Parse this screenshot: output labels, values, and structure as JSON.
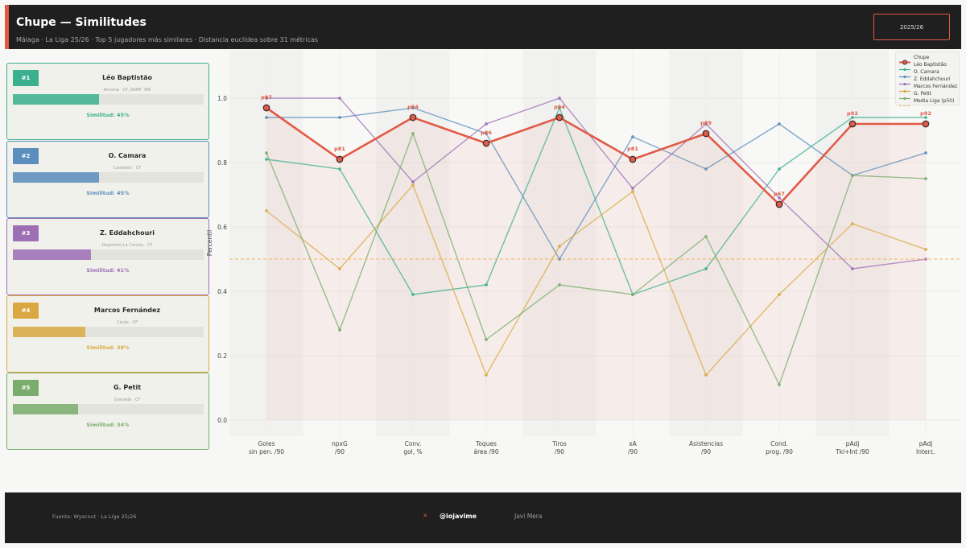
{
  "header": {
    "title": "Chupe — Similitudes",
    "subtitle": "Málaga  ·  La Liga 25/26  ·  Top 5 jugadores más similares  ·  Distancia euclídea sobre 31 métricas",
    "season": "2025/26"
  },
  "cards": [
    {
      "rank": "#1",
      "name": "Léo Baptistão",
      "meta": "Almería  ·  CF, RAMF, RW",
      "similarity": 0.45,
      "sim_label": "Similitud: 45%",
      "color": "#3bb08f"
    },
    {
      "rank": "#2",
      "name": "O. Camara",
      "meta": "Castellón  ·  CF",
      "similarity": 0.45,
      "sim_label": "Similitud: 45%",
      "color": "#5b8dbd"
    },
    {
      "rank": "#3",
      "name": "Z. Eddahchouri",
      "meta": "Deportivo La Coruña  ·  CF",
      "similarity": 0.41,
      "sim_label": "Similitud: 41%",
      "color": "#9e6fb5"
    },
    {
      "rank": "#4",
      "name": "Marcos Fernández",
      "meta": "Ceuta  ·  CF",
      "similarity": 0.38,
      "sim_label": "Similitud: 38%",
      "color": "#d9a843"
    },
    {
      "rank": "#5",
      "name": "G. Petit",
      "meta": "Granada  ·  CF",
      "similarity": 0.34,
      "sim_label": "Similitud: 34%",
      "color": "#7aad6d"
    }
  ],
  "chart_data": {
    "type": "line",
    "ylabel": "Percentil",
    "ylim": [
      -0.05,
      1.15
    ],
    "yticks": [
      "0.0",
      "0.2",
      "0.4",
      "0.6",
      "0.8",
      "1.0"
    ],
    "grid": true,
    "legend_position": "top-right",
    "categories": [
      [
        "Goles",
        "sin pen. /90"
      ],
      [
        "npxG",
        "/90"
      ],
      [
        "Conv.",
        "gol, %"
      ],
      [
        "Toques",
        "área /90"
      ],
      [
        "Tiros",
        "/90"
      ],
      [
        "xA",
        "/90"
      ],
      [
        "Asistencias",
        "/90"
      ],
      [
        "Cond.",
        "prog. /90"
      ],
      [
        "pAdj",
        "Tkl+Int /90"
      ],
      [
        "pAdj",
        "Interc."
      ]
    ],
    "main_series": {
      "name": "Chupe",
      "color": "#e05a47",
      "values": [
        0.97,
        0.81,
        0.94,
        0.86,
        0.94,
        0.81,
        0.89,
        0.67,
        0.92,
        0.92
      ],
      "labels": [
        "p97",
        "p81",
        "p94",
        "p86",
        "p94",
        "p81",
        "p89",
        "p67",
        "p92",
        "p92"
      ]
    },
    "series": [
      {
        "name": "Léo Baptistão",
        "color": "#3bb08f",
        "values": [
          0.81,
          0.78,
          0.39,
          0.42,
          0.97,
          0.39,
          0.47,
          0.78,
          0.94,
          0.94
        ]
      },
      {
        "name": "O. Camara",
        "color": "#5b8dbd",
        "values": [
          0.94,
          0.94,
          0.97,
          0.89,
          0.5,
          0.88,
          0.78,
          0.92,
          0.76,
          0.83
        ]
      },
      {
        "name": "Z. Eddahchouri",
        "color": "#9e6fb5",
        "values": [
          1.0,
          1.0,
          0.74,
          0.92,
          1.0,
          0.72,
          0.92,
          0.69,
          0.47,
          0.5
        ]
      },
      {
        "name": "Marcos Fernández",
        "color": "#d9a843",
        "values": [
          0.65,
          0.47,
          0.73,
          0.14,
          0.54,
          0.71,
          0.14,
          0.39,
          0.61,
          0.53
        ]
      },
      {
        "name": "G. Petit",
        "color": "#7aad6d",
        "values": [
          0.83,
          0.28,
          0.89,
          0.25,
          0.42,
          0.39,
          0.57,
          0.11,
          0.76,
          0.75
        ]
      }
    ],
    "reference_line": {
      "name": "Media Liga (p50)",
      "value": 0.5,
      "color": "#f0b35b"
    }
  },
  "footer": {
    "source": "Fuente: Wyscout  ·  La Liga 25/26",
    "x_icon": "×",
    "handle": "@iojavime",
    "author": "Javi Mera"
  }
}
